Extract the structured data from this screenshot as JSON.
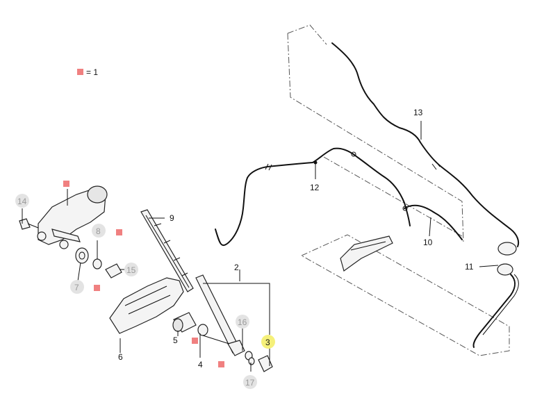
{
  "legend": {
    "text": "= 1",
    "marker_color": "#f08080"
  },
  "colors": {
    "callout_grey": "#e3e3e3",
    "callout_highlight": "#f5f07a",
    "marker_red": "#f08080"
  },
  "callouts": {
    "c1": "2",
    "c2": "3",
    "c3": "4",
    "c4": "5",
    "c5": "6",
    "c6": "7",
    "c7": "8",
    "c8": "9",
    "c9": "10",
    "c10": "11",
    "c11": "12",
    "c12": "13",
    "c13": "14",
    "c14": "15",
    "c15": "16",
    "c16": "17"
  }
}
